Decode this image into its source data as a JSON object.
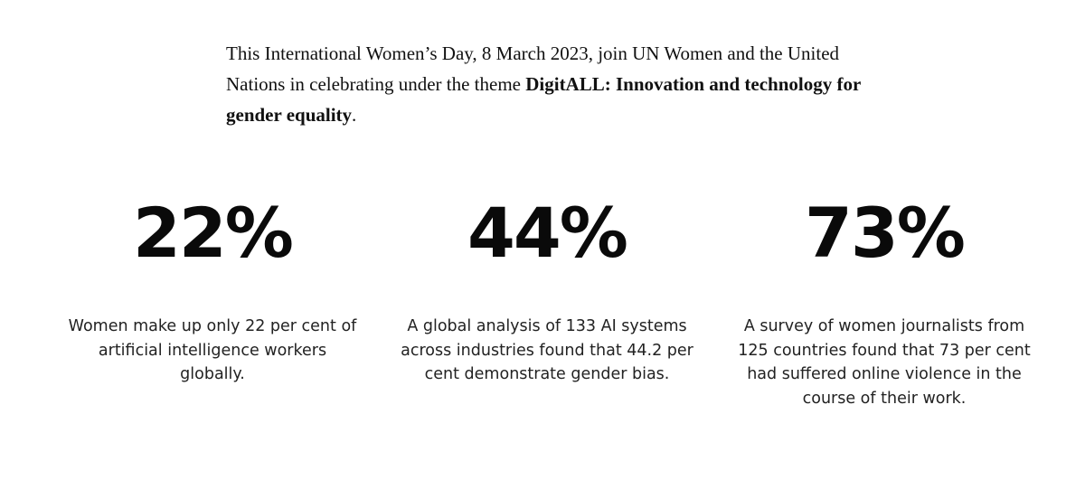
{
  "intro": {
    "text_before": "This International Women’s Day, 8 March 2023, join UN Women and the United Nations in celebrating under the theme ",
    "theme": "DigitALL: Innovation and technology for gender equality",
    "text_after": "."
  },
  "stats": [
    {
      "value": "22%",
      "description": "Women make up only 22 per cent of artificial intelligence workers globally."
    },
    {
      "value": "44%",
      "description": "A global analysis of 133 AI systems across industries found that 44.2 per cent demonstrate gender bias."
    },
    {
      "value": "73%",
      "description": "A survey of women journalists from 125 countries found that 73 per cent had suffered online violence in the course of their work."
    }
  ]
}
